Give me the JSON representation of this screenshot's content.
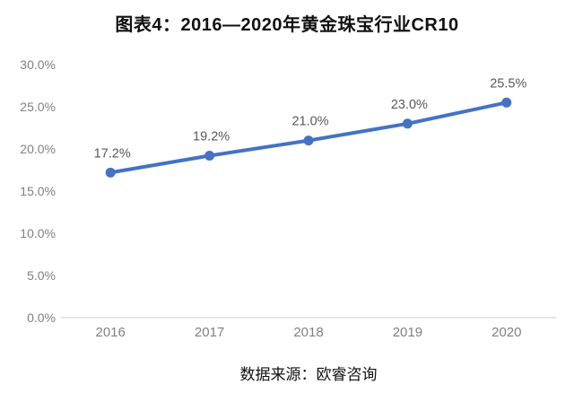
{
  "header": {
    "title": "图表4：2016—2020年黄金珠宝行业CR10"
  },
  "footer": {
    "source": "数据来源：欧睿咨询"
  },
  "chart_data": {
    "type": "line",
    "title": "图表4：2016—2020年黄金珠宝行业CR10",
    "categories": [
      "2016",
      "2017",
      "2018",
      "2019",
      "2020"
    ],
    "series": [
      {
        "name": "CR10",
        "values": [
          17.2,
          19.2,
          21.0,
          23.0,
          25.5
        ],
        "point_labels": [
          "17.2%",
          "19.2%",
          "21.0%",
          "23.0%",
          "25.5%"
        ]
      }
    ],
    "xlabel": "",
    "ylabel": "",
    "ylim": [
      0,
      30
    ],
    "y_ticks": [
      0,
      5,
      10,
      15,
      20,
      25,
      30
    ],
    "y_tick_labels": [
      "0.0%",
      "5.0%",
      "10.0%",
      "15.0%",
      "20.0%",
      "25.0%",
      "30.0%"
    ],
    "grid": false,
    "legend_position": "none",
    "colors": {
      "line": "#4472C4",
      "marker": "#4472C4",
      "data_label": "#595959",
      "tick_label": "#808080",
      "axis_line": "#D6D6D6"
    }
  }
}
